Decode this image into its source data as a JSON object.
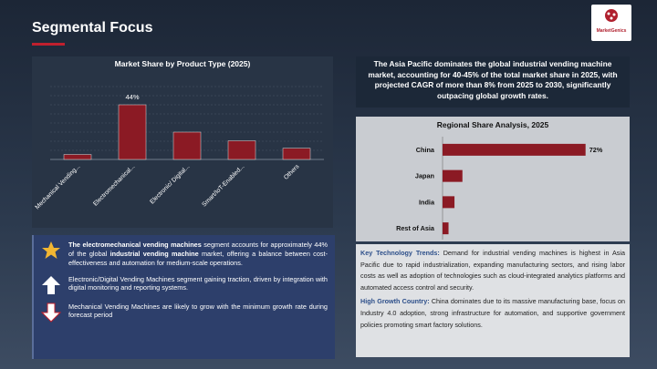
{
  "header": {
    "title": "Segmental Focus",
    "logo": "MarketGenics"
  },
  "chart_data": [
    {
      "type": "bar",
      "title": "Market Share by Product Type (2025)",
      "categories": [
        "Mechanical Vending...",
        "Electromechanical...",
        "Electronic/ Digital...",
        "Smart/IoT-Enabled...",
        "Others"
      ],
      "values": [
        4,
        44,
        22,
        15,
        9
      ],
      "value_labels": [
        null,
        "44%",
        null,
        null,
        null
      ],
      "color": "#8b1a24",
      "ylim": [
        0,
        55
      ],
      "grid": true
    },
    {
      "type": "hbar",
      "title": "Regional Share Analysis, 2025",
      "categories": [
        "China",
        "Japan",
        "India",
        "Rest of Asia"
      ],
      "values": [
        72,
        10,
        6,
        3
      ],
      "value_labels": [
        "72%",
        null,
        null,
        null
      ],
      "color": "#8b1a24",
      "xlim": [
        0,
        85
      ]
    }
  ],
  "summary": "The Asia Pacific dominates the global industrial vending machine market, accounting for 40-45% of the total market share in 2025, with projected CAGR of more than 8% from 2025 to 2030, significantly outpacing global growth rates.",
  "left_notes": [
    [
      "The electromechanical vending machines",
      " segment accounts for approximately 44% of the global ",
      "industrial vending machine",
      " market, offering a balance between cost-effectiveness and automation for medium-scale operations."
    ],
    [
      "Electronic/Digital Vending Machines segment gaining traction, driven by integration with digital monitoring and reporting systems."
    ],
    [
      "Mechanical Vending Machines are likely to grow with the minimum growth rate during forecast period"
    ]
  ],
  "right_notes": [
    {
      "label": "Key Technology Trends:",
      "text": " Demand for industrial vending machines is highest in Asia Pacific due to rapid industrialization, expanding manufacturing sectors, and rising labor costs as well as adoption of technologies such as cloud-integrated analytics platforms and automated access control and security."
    },
    {
      "label": "High Growth Country:",
      "text": " China dominates due to its massive manufacturing base, focus on Industry 4.0 adoption, strong infrastructure for automation, and supportive government policies promoting smart factory solutions."
    }
  ]
}
